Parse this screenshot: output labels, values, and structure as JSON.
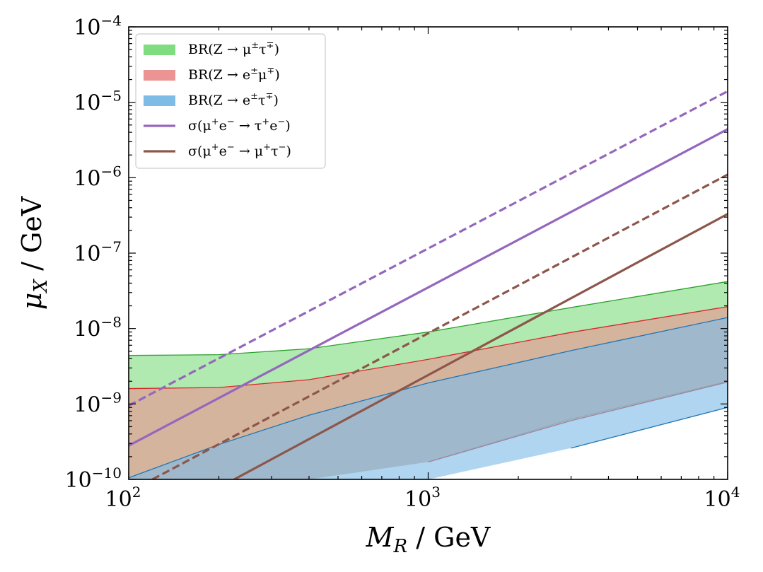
{
  "chart_data": {
    "type": "area",
    "x_scale": "log",
    "y_scale": "log",
    "xlim": [
      100,
      10000
    ],
    "ylim": [
      1e-10,
      0.0001
    ],
    "xlabel": {
      "main": "M",
      "sub": "R",
      "unit": " / GeV"
    },
    "ylabel": {
      "main": "μ",
      "sub": "X",
      "unit": " / GeV"
    },
    "x_ticks": [
      {
        "value": 100,
        "base": "10",
        "exp": "2"
      },
      {
        "value": 1000,
        "base": "10",
        "exp": "3"
      },
      {
        "value": 10000,
        "base": "10",
        "exp": "4"
      }
    ],
    "y_ticks": [
      {
        "value": 1e-10,
        "base": "10",
        "exp": "−10"
      },
      {
        "value": 1e-09,
        "base": "10",
        "exp": "−9"
      },
      {
        "value": 1e-08,
        "base": "10",
        "exp": "−8"
      },
      {
        "value": 1e-07,
        "base": "10",
        "exp": "−7"
      },
      {
        "value": 1e-06,
        "base": "10",
        "exp": "−6"
      },
      {
        "value": 1e-05,
        "base": "10",
        "exp": "−5"
      },
      {
        "value": 0.0001,
        "base": "10",
        "exp": "−4"
      }
    ],
    "legend_position": "top-left",
    "legend": [
      {
        "kind": "patch",
        "color": "#7fdd7f",
        "pre": "BR(Z → μ",
        "sup1": "±",
        "mid": "τ",
        "sup2": "∓",
        "post": ")"
      },
      {
        "kind": "patch",
        "color": "#ec9393",
        "pre": "BR(Z → e",
        "sup1": "±",
        "mid": "μ",
        "sup2": "∓",
        "post": ")"
      },
      {
        "kind": "patch",
        "color": "#7fbbe7",
        "pre": "BR(Z → e",
        "sup1": "±",
        "mid": "τ",
        "sup2": "∓",
        "post": ")"
      },
      {
        "kind": "line",
        "color": "#9467bd",
        "pre": "σ(μ",
        "sup1": "+",
        "mid": "e",
        "sup2": "−",
        "mid2": " → τ",
        "sup3": "+",
        "mid3": "e",
        "sup4": "−",
        "post": ")"
      },
      {
        "kind": "line",
        "color": "#8c564b",
        "pre": "σ(μ",
        "sup1": "+",
        "mid": "e",
        "sup2": "−",
        "mid2": " → μ",
        "sup3": "+",
        "mid3": "τ",
        "sup4": "−",
        "post": ")"
      }
    ],
    "bands": [
      {
        "name": "BR(Z → μ±τ∓)",
        "fill": "#7fdd7f",
        "edge": "#2ca02c",
        "x": [
          100,
          200,
          400,
          1000,
          3000,
          10000
        ],
        "upper": [
          4.4e-09,
          4.5e-09,
          5.4e-09,
          9e-09,
          1.9e-08,
          4.2e-08
        ],
        "lower": [
          1e-10,
          1e-10,
          1e-10,
          1.7e-10,
          6.3e-10,
          2e-09
        ]
      },
      {
        "name": "BR(Z → e±μ∓)",
        "fill": "#ec9393",
        "edge": "#d62728",
        "x": [
          100,
          200,
          400,
          1000,
          3000,
          10000
        ],
        "upper": [
          1.6e-09,
          1.65e-09,
          2.1e-09,
          3.9e-09,
          8.9e-09,
          1.95e-08
        ],
        "lower": [
          1e-10,
          1e-10,
          1e-10,
          1.7e-10,
          6e-10,
          1.95e-09
        ]
      },
      {
        "name": "BR(Z → e±τ∓)",
        "fill": "#7fbbe7",
        "edge": "#1f77b4",
        "x": [
          100,
          200,
          400,
          1000,
          3000,
          10000
        ],
        "upper": [
          1.05e-10,
          2.9e-10,
          7.1e-10,
          1.9e-09,
          5.1e-09,
          1.4e-08
        ],
        "lower": [
          1e-10,
          1e-10,
          1e-10,
          1e-10,
          2.6e-10,
          9e-10
        ]
      }
    ],
    "series": [
      {
        "name": "σ(μ+e− → τ+e−) dashed",
        "color": "#9467bd",
        "dash": true,
        "x": [
          100,
          10000
        ],
        "y": [
          9.5e-10,
          1.4e-05
        ]
      },
      {
        "name": "σ(μ+e− → τ+e−) solid",
        "color": "#9467bd",
        "dash": false,
        "x": [
          100,
          10000
        ],
        "y": [
          2.8e-10,
          4.4e-06
        ]
      },
      {
        "name": "σ(μ+e− → μ+τ−) dashed",
        "color": "#8c564b",
        "dash": true,
        "x": [
          120,
          10000
        ],
        "y": [
          1e-10,
          1.1e-06
        ]
      },
      {
        "name": "σ(μ+e− → μ+τ−) solid",
        "color": "#8c564b",
        "dash": false,
        "x": [
          225,
          10000
        ],
        "y": [
          1e-10,
          3.3e-07
        ]
      }
    ]
  }
}
